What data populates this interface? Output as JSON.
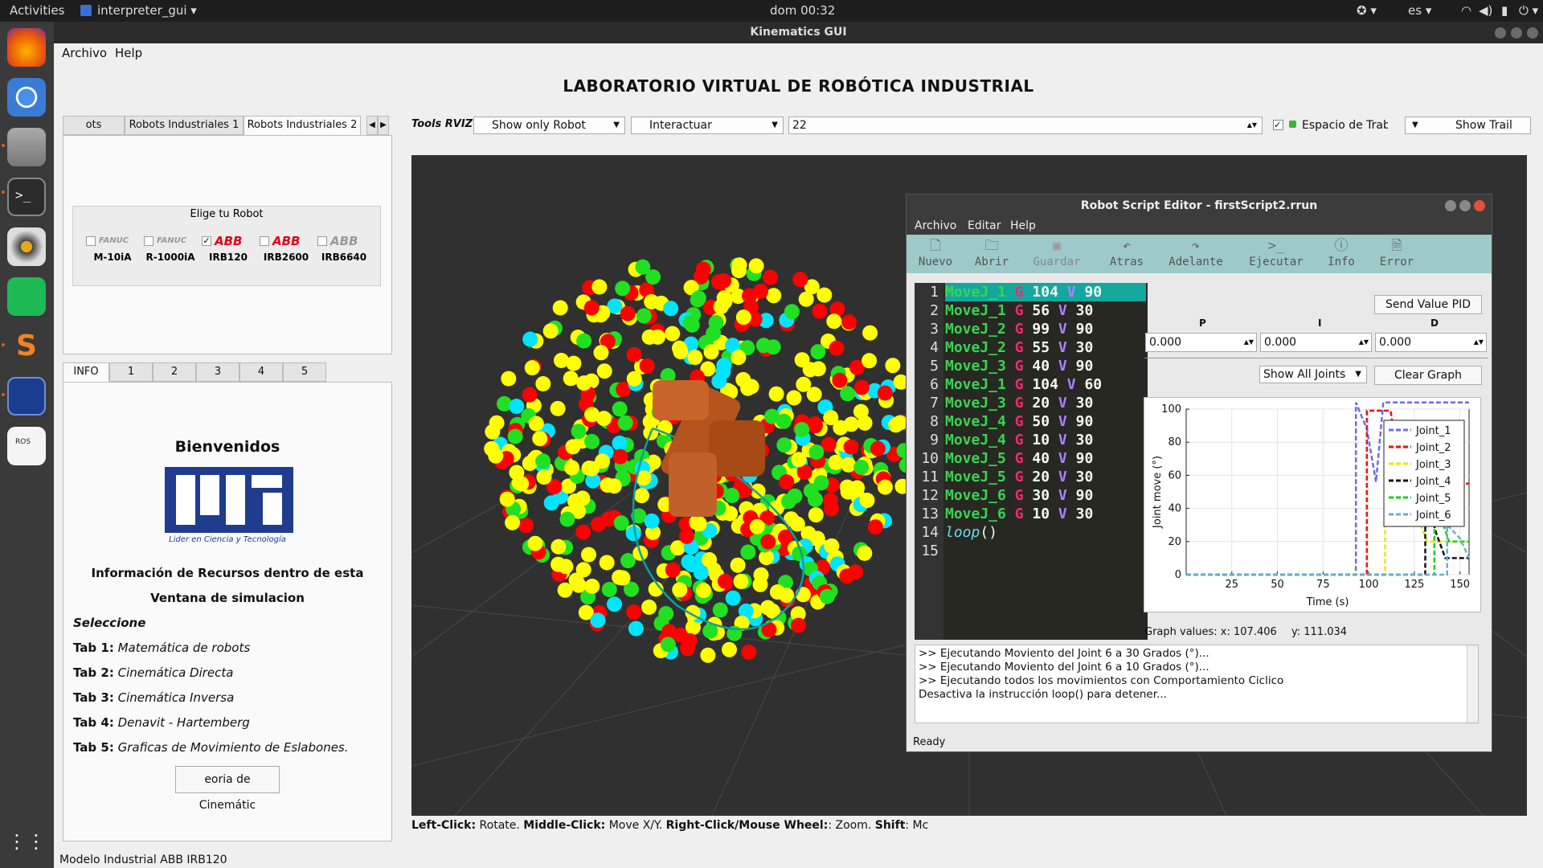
{
  "topbar": {
    "activities": "Activities",
    "app_menu": "interpreter_gui",
    "clock": "dom 00:32",
    "lang": "es"
  },
  "window": {
    "title": "Kinematics GUI",
    "menu": [
      "Archivo",
      "Help"
    ],
    "app_title": "LABORATORIO VIRTUAL DE ROBÓTICA INDUSTRIAL"
  },
  "robot_tabs": [
    "ots Clasicos",
    "Robots Industriales 1",
    "Robots Industriales 2"
  ],
  "robot_group": {
    "title": "Elige tu Robot",
    "robots": [
      {
        "brand": "FANUC",
        "name": "M-10iA",
        "checked": false
      },
      {
        "brand": "FANUC",
        "name": "R-1000iA",
        "checked": false
      },
      {
        "brand": "ABB",
        "name": "IRB120",
        "checked": true
      },
      {
        "brand": "ABB",
        "name": "IRB2600",
        "checked": false
      },
      {
        "brand": "ABB",
        "name": "IRB6640",
        "checked": false
      }
    ]
  },
  "info_tabs": [
    "INFO",
    "1",
    "2",
    "3",
    "4",
    "5"
  ],
  "info": {
    "welcome": "Bienvenidos",
    "logo_caption": "Lider en Ciencia y Tecnología",
    "line1": "Información de Recursos dentro de esta",
    "line2": "Ventana de simulacion",
    "select": "Seleccione",
    "tabs": [
      {
        "label": "Tab 1:",
        "text": "Matemática de robots"
      },
      {
        "label": "Tab 2:",
        "text": "Cinemática Directa"
      },
      {
        "label": "Tab 3:",
        "text": "Cinemática Inversa"
      },
      {
        "label": "Tab 4:",
        "text": "Denavit - Hartemberg"
      },
      {
        "label": "Tab 5:",
        "text": "Graficas de Movimiento de Eslabones."
      }
    ],
    "button": "eoria de Cinemátic"
  },
  "rviz_toolbar": {
    "label": "Tools RVIZ",
    "view_combo": "Show only Robot",
    "mode_combo": "Interactuar",
    "value": "22",
    "workspace": "Espacio de Trabaj",
    "trail": "Show Trail"
  },
  "help_line": {
    "b1": "Left-Click:",
    "t1": " Rotate. ",
    "b2": "Middle-Click:",
    "t2": " Move X/Y. ",
    "b3": "Right-Click/Mouse Wheel:",
    "t3": ": Zoom. ",
    "b4": "Shift",
    "t4": ": Mc"
  },
  "editor": {
    "title": "Robot Script Editor - firstScript2.rrun",
    "menu": [
      "Archivo",
      "Editar",
      "Help"
    ],
    "tools": [
      {
        "label": "Nuevo",
        "icon": "file-icon"
      },
      {
        "label": "Abrir",
        "icon": "folder-icon"
      },
      {
        "label": "Guardar",
        "icon": "save-icon"
      },
      {
        "label": "Atras",
        "icon": "undo-icon"
      },
      {
        "label": "Adelante",
        "icon": "redo-icon"
      },
      {
        "label": "Ejecutar",
        "icon": "terminal-icon"
      },
      {
        "label": "Info",
        "icon": "info-icon"
      },
      {
        "label": "Error",
        "icon": "error-icon"
      }
    ],
    "code": [
      {
        "cmd": "MoveJ_1",
        "g": "104",
        "v": "90"
      },
      {
        "cmd": "MoveJ_1",
        "g": "56",
        "v": "30"
      },
      {
        "cmd": "MoveJ_2",
        "g": "99",
        "v": "90"
      },
      {
        "cmd": "MoveJ_2",
        "g": "55",
        "v": "30"
      },
      {
        "cmd": "MoveJ_3",
        "g": "40",
        "v": "90"
      },
      {
        "cmd": "MoveJ_1",
        "g": "104",
        "v": "60"
      },
      {
        "cmd": "MoveJ_3",
        "g": "20",
        "v": "30"
      },
      {
        "cmd": "MoveJ_4",
        "g": "50",
        "v": "90"
      },
      {
        "cmd": "MoveJ_4",
        "g": "10",
        "v": "30"
      },
      {
        "cmd": "MoveJ_5",
        "g": "40",
        "v": "90"
      },
      {
        "cmd": "MoveJ_5",
        "g": "20",
        "v": "30"
      },
      {
        "cmd": "MoveJ_6",
        "g": "30",
        "v": "90"
      },
      {
        "cmd": "MoveJ_6",
        "g": "10",
        "v": "30"
      }
    ],
    "loop_text": "loop",
    "loop_paren": "()",
    "line_count": 15,
    "send_pid": "Send Value PID",
    "pid_labels": [
      "P",
      "I",
      "D"
    ],
    "pid_values": [
      "0.000",
      "0.000",
      "0.000"
    ],
    "joints_combo": "Show All Joints",
    "clear_graph": "Clear Graph",
    "graph_values": "Graph values: x: 107.406",
    "graph_y": "y: 111.034",
    "console": [
      ">> Ejecutando Moviento del Joint 6  a  30 Grados (°)...",
      ">> Ejecutando Moviento del Joint 6  a  10 Grados (°)...",
      ">> Ejecutando todos los movimientos con Comportamiento Ciclico",
      "Desactiva la instrucción loop() para detener..."
    ],
    "status": "Ready"
  },
  "chart_data": {
    "type": "line",
    "xlabel": "Time (s)",
    "ylabel": "Joint move (°)",
    "xlim": [
      0,
      155
    ],
    "ylim": [
      0,
      100
    ],
    "xticks": [
      25,
      50,
      75,
      100,
      125,
      150
    ],
    "yticks": [
      0,
      20,
      40,
      60,
      80,
      100
    ],
    "legend_position": "top-right",
    "series": [
      {
        "name": "Joint_1",
        "color": "#6b6bf0",
        "dash": "6,3",
        "x": [
          0,
          93,
          93,
          99,
          104,
          108,
          155
        ],
        "y": [
          0,
          0,
          104,
          88,
          56,
          104,
          104
        ]
      },
      {
        "name": "Joint_2",
        "color": "#e8140c",
        "dash": "6,3",
        "x": [
          0,
          99,
          99,
          112,
          118,
          135,
          155
        ],
        "y": [
          0,
          0,
          99,
          99,
          55,
          55,
          55
        ]
      },
      {
        "name": "Joint_3",
        "color": "#e8e800",
        "dash": "6,3",
        "x": [
          0,
          109,
          109,
          125,
          132,
          155
        ],
        "y": [
          0,
          0,
          40,
          40,
          20,
          20
        ]
      },
      {
        "name": "Joint_4",
        "color": "#111111",
        "dash": "6,3",
        "x": [
          0,
          131,
          131,
          137,
          142,
          155
        ],
        "y": [
          0,
          0,
          50,
          25,
          10,
          10
        ]
      },
      {
        "name": "Joint_5",
        "color": "#1ad11a",
        "dash": "6,3",
        "x": [
          0,
          136,
          136,
          141,
          144,
          155
        ],
        "y": [
          0,
          0,
          40,
          30,
          20,
          20
        ]
      },
      {
        "name": "Joint_6",
        "color": "#6aaecd",
        "dash": "6,3",
        "x": [
          0,
          143,
          143,
          150,
          155
        ],
        "y": [
          0,
          0,
          30,
          22,
          10
        ]
      }
    ]
  },
  "statusbar": "Modelo Industrial ABB IRB120"
}
